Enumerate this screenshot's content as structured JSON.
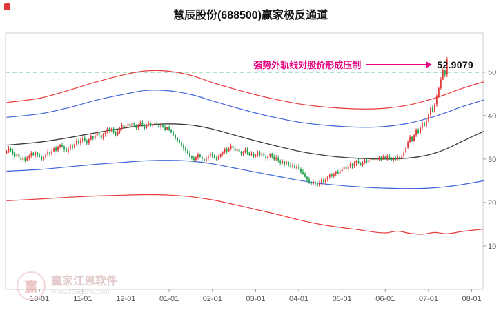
{
  "page": {
    "title": "慧辰股份(688500)赢家极反通道"
  },
  "annotation": {
    "text": "强势外轨线对股价形成压制",
    "price_label": "52.9079",
    "color": "#e4007f"
  },
  "watermark": {
    "brand": "赢家江恩软件",
    "url": "www.360gann.com",
    "logo_char": "赢"
  },
  "chart_data": {
    "type": "candlestick",
    "title": "慧辰股份(688500)赢家极反通道",
    "legend": "none",
    "grid": "off",
    "y_range": [
      0,
      59
    ],
    "y_ticks": [
      10,
      20,
      30,
      40,
      50
    ],
    "x_ticks": [
      {
        "label": "10-01",
        "slot": 16
      },
      {
        "label": "11-01",
        "slot": 37
      },
      {
        "label": "12-01",
        "slot": 58
      },
      {
        "label": "01-01",
        "slot": 79
      },
      {
        "label": "02-01",
        "slot": 100
      },
      {
        "label": "03-01",
        "slot": 121
      },
      {
        "label": "04-01",
        "slot": 142
      },
      {
        "label": "05-01",
        "slot": 163
      },
      {
        "label": "06-01",
        "slot": 184
      },
      {
        "label": "07-01",
        "slot": 205
      },
      {
        "label": "08-01",
        "slot": 226
      }
    ],
    "total_slots": 232,
    "last_price": 52.9079,
    "pressure_line": {
      "value": 50,
      "style": "dashed",
      "color": "#2fb25e"
    },
    "colors": {
      "up": "#e23a3a",
      "down": "#1ea24e"
    },
    "closes": [
      31.8,
      32.4,
      31.9,
      31.2,
      30.6,
      31.1,
      30.4,
      29.8,
      30.3,
      29.7,
      30.2,
      30.8,
      31.4,
      30.9,
      31.5,
      31.0,
      30.5,
      29.9,
      30.4,
      31.0,
      31.6,
      31.1,
      31.8,
      32.5,
      32.0,
      32.7,
      33.3,
      32.8,
      32.2,
      31.7,
      32.4,
      33.1,
      32.6,
      33.4,
      34.1,
      33.6,
      34.3,
      34.9,
      34.3,
      33.7,
      34.5,
      35.2,
      34.7,
      35.4,
      36.1,
      35.5,
      34.8,
      35.7,
      36.4,
      37.1,
      36.5,
      37.0,
      36.3,
      35.6,
      36.2,
      37.0,
      37.8,
      37.2,
      37.6,
      38.1,
      37.5,
      38.2,
      37.8,
      37.2,
      37.9,
      38.4,
      37.7,
      37.1,
      37.8,
      38.2,
      37.6,
      38.0,
      38.3,
      37.8,
      37.3,
      37.9,
      37.4,
      36.8,
      37.3,
      36.7,
      36.1,
      35.5,
      34.9,
      34.3,
      33.7,
      33.1,
      32.5,
      31.9,
      31.3,
      30.7,
      30.2,
      29.8,
      30.4,
      31.0,
      30.5,
      30.0,
      29.6,
      30.1,
      30.7,
      31.3,
      30.8,
      30.3,
      29.9,
      30.5,
      31.1,
      31.7,
      32.3,
      31.8,
      32.4,
      33.0,
      32.5,
      31.9,
      32.3,
      31.7,
      31.1,
      31.6,
      32.1,
      31.5,
      30.9,
      31.3,
      30.7,
      31.0,
      31.5,
      30.9,
      31.3,
      30.7,
      30.1,
      30.6,
      31.1,
      30.5,
      29.9,
      30.3,
      29.7,
      29.1,
      29.5,
      28.9,
      29.3,
      28.7,
      28.1,
      28.5,
      27.9,
      28.3,
      27.7,
      27.1,
      26.5,
      25.9,
      25.3,
      24.7,
      24.2,
      24.8,
      24.3,
      23.9,
      24.5,
      25.1,
      24.7,
      25.3,
      25.9,
      26.4,
      26.0,
      26.6,
      27.1,
      26.7,
      27.2,
      27.6,
      28.1,
      27.7,
      28.3,
      28.8,
      28.4,
      29.0,
      29.5,
      29.1,
      28.7,
      29.2,
      29.7,
      29.3,
      29.8,
      30.2,
      29.8,
      30.3,
      29.9,
      30.4,
      30.0,
      30.5,
      30.1,
      30.6,
      30.2,
      29.8,
      30.3,
      30.0,
      30.5,
      30.2,
      30.7,
      31.5,
      32.6,
      33.9,
      35.1,
      34.2,
      35.5,
      36.8,
      36.0,
      37.2,
      38.4,
      37.6,
      38.8,
      40.2,
      41.8,
      40.9,
      42.6,
      44.4,
      46.3,
      48.3,
      50.4,
      49.4,
      52.9079
    ],
    "channels": {
      "outer_upper": {
        "color": "#e83a3a",
        "width": 1.2,
        "points": [
          [
            0,
            43.0
          ],
          [
            16,
            44.0
          ],
          [
            30,
            45.8
          ],
          [
            44,
            47.8
          ],
          [
            58,
            49.5
          ],
          [
            68,
            50.3
          ],
          [
            79,
            50.2
          ],
          [
            90,
            49.2
          ],
          [
            100,
            47.6
          ],
          [
            110,
            46.2
          ],
          [
            121,
            44.8
          ],
          [
            132,
            43.6
          ],
          [
            142,
            42.7
          ],
          [
            152,
            42.1
          ],
          [
            163,
            41.7
          ],
          [
            174,
            41.5
          ],
          [
            184,
            41.7
          ],
          [
            195,
            42.4
          ],
          [
            205,
            43.6
          ],
          [
            213,
            44.8
          ],
          [
            221,
            46.2
          ],
          [
            232,
            47.8
          ]
        ]
      },
      "inner_upper": {
        "color": "#3d64d8",
        "width": 1.2,
        "points": [
          [
            0,
            39.6
          ],
          [
            16,
            40.4
          ],
          [
            30,
            41.8
          ],
          [
            44,
            43.6
          ],
          [
            58,
            45.0
          ],
          [
            68,
            45.8
          ],
          [
            79,
            45.7
          ],
          [
            90,
            44.8
          ],
          [
            100,
            43.4
          ],
          [
            110,
            42.0
          ],
          [
            121,
            40.6
          ],
          [
            132,
            39.4
          ],
          [
            142,
            38.5
          ],
          [
            152,
            37.9
          ],
          [
            163,
            37.5
          ],
          [
            174,
            37.3
          ],
          [
            184,
            37.5
          ],
          [
            195,
            38.2
          ],
          [
            205,
            39.4
          ],
          [
            213,
            40.6
          ],
          [
            221,
            42.0
          ],
          [
            232,
            43.6
          ]
        ]
      },
      "middle": {
        "color": "#3c3c3c",
        "width": 1.3,
        "points": [
          [
            0,
            33.2
          ],
          [
            16,
            33.9
          ],
          [
            30,
            34.9
          ],
          [
            44,
            36.1
          ],
          [
            58,
            37.2
          ],
          [
            68,
            37.8
          ],
          [
            79,
            38.1
          ],
          [
            90,
            37.8
          ],
          [
            100,
            36.9
          ],
          [
            110,
            35.6
          ],
          [
            121,
            34.2
          ],
          [
            132,
            32.9
          ],
          [
            142,
            31.8
          ],
          [
            152,
            31.0
          ],
          [
            163,
            30.4
          ],
          [
            174,
            30.1
          ],
          [
            184,
            30.0
          ],
          [
            192,
            30.1
          ],
          [
            200,
            30.5
          ],
          [
            207,
            31.2
          ],
          [
            214,
            32.4
          ],
          [
            221,
            34.0
          ],
          [
            232,
            36.4
          ]
        ]
      },
      "inner_lower": {
        "color": "#3d64d8",
        "width": 1.2,
        "points": [
          [
            0,
            27.2
          ],
          [
            16,
            27.6
          ],
          [
            30,
            28.2
          ],
          [
            44,
            28.8
          ],
          [
            58,
            29.3
          ],
          [
            68,
            29.6
          ],
          [
            79,
            29.7
          ],
          [
            90,
            29.5
          ],
          [
            100,
            28.9
          ],
          [
            110,
            28.0
          ],
          [
            121,
            27.0
          ],
          [
            132,
            26.0
          ],
          [
            142,
            25.1
          ],
          [
            152,
            24.4
          ],
          [
            163,
            23.9
          ],
          [
            174,
            23.5
          ],
          [
            184,
            23.3
          ],
          [
            195,
            23.2
          ],
          [
            205,
            23.3
          ],
          [
            213,
            23.6
          ],
          [
            221,
            24.1
          ],
          [
            232,
            25.0
          ]
        ]
      },
      "outer_lower": {
        "color": "#e83a3a",
        "width": 1.2,
        "points": [
          [
            0,
            20.4
          ],
          [
            16,
            20.8
          ],
          [
            30,
            21.2
          ],
          [
            44,
            21.5
          ],
          [
            58,
            21.7
          ],
          [
            68,
            21.8
          ],
          [
            79,
            21.7
          ],
          [
            90,
            21.3
          ],
          [
            100,
            20.6
          ],
          [
            110,
            19.6
          ],
          [
            121,
            18.4
          ],
          [
            132,
            17.2
          ],
          [
            142,
            16.0
          ],
          [
            152,
            15.0
          ],
          [
            163,
            14.2
          ],
          [
            170,
            13.8
          ],
          [
            177,
            13.3
          ],
          [
            184,
            13.0
          ],
          [
            190,
            13.4
          ],
          [
            196,
            12.9
          ],
          [
            202,
            12.7
          ],
          [
            208,
            13.1
          ],
          [
            214,
            12.8
          ],
          [
            221,
            13.3
          ],
          [
            232,
            13.9
          ]
        ]
      }
    }
  }
}
